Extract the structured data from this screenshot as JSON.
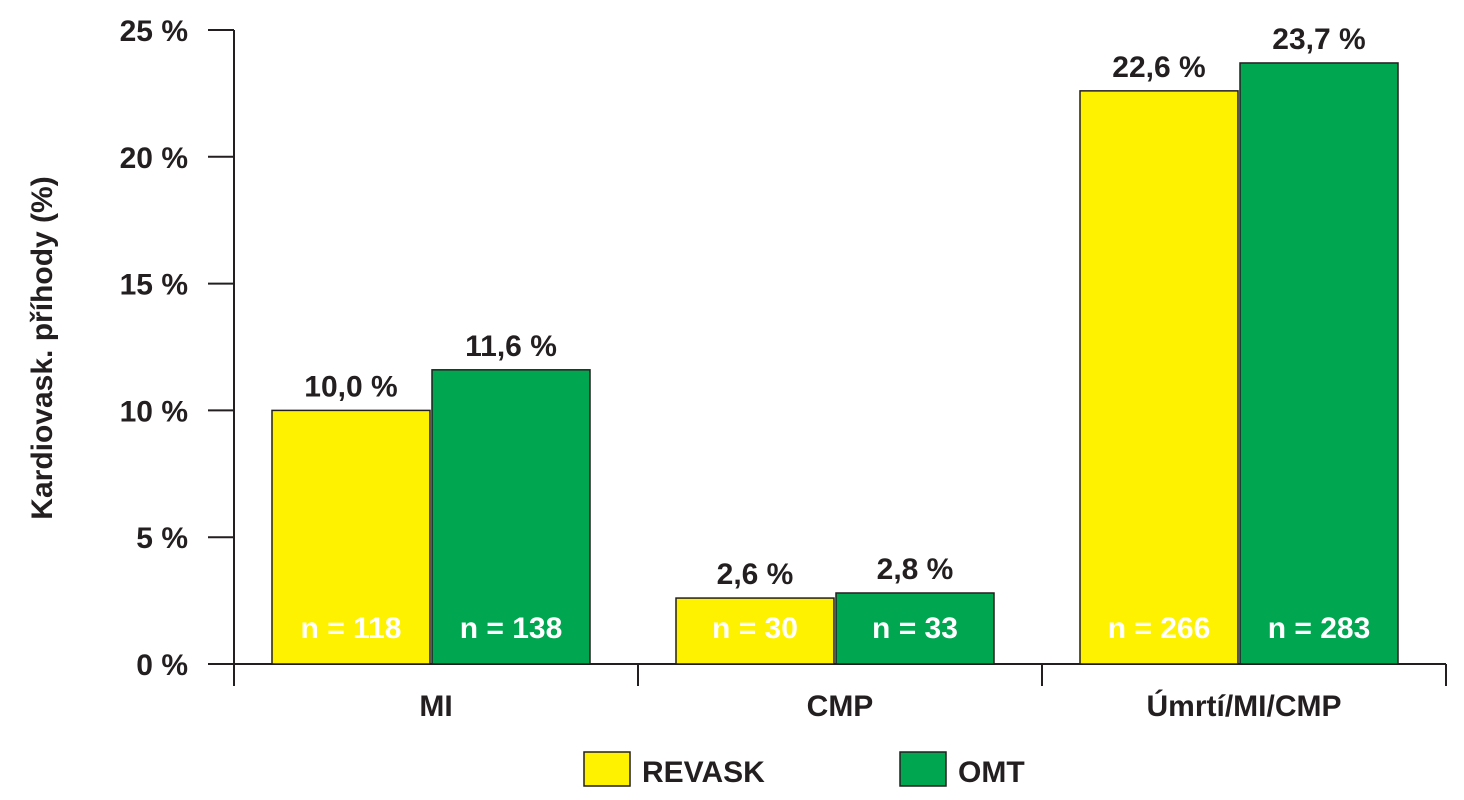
{
  "chart_data": {
    "type": "bar",
    "ylabel": "Kardiovask. příhody (%)",
    "ylim": [
      0,
      25
    ],
    "yticks": [
      0,
      5,
      10,
      15,
      20,
      25
    ],
    "ytick_labels": [
      "0 %",
      "5 %",
      "10 %",
      "15 %",
      "20 %",
      "25 %"
    ],
    "categories": [
      "MI",
      "CMP",
      "Úmrtí/MI/CMP"
    ],
    "series": [
      {
        "name": "REVASK",
        "color": "#fff200",
        "values": [
          10.0,
          2.6,
          22.6
        ],
        "value_labels": [
          "10,0 %",
          "2,6 %",
          "22,6 %"
        ],
        "n_labels": [
          "n = 118",
          "n = 30",
          "n = 266"
        ]
      },
      {
        "name": "OMT",
        "color": "#00a650",
        "values": [
          11.6,
          2.8,
          23.7
        ],
        "value_labels": [
          "11,6 %",
          "2,8 %",
          "23,7 %"
        ],
        "n_labels": [
          "n = 138",
          "n = 33",
          "n = 283"
        ]
      }
    ],
    "legend_position": "bottom-center",
    "grid": false
  }
}
